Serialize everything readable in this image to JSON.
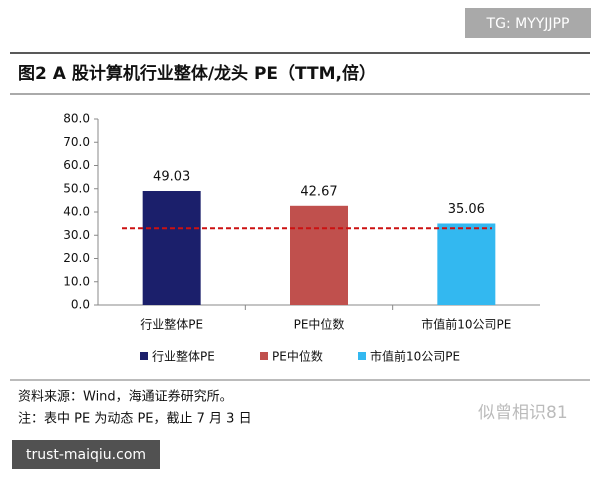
{
  "watermark": "TG: MYYJJPP",
  "chart_data": {
    "type": "bar",
    "title": "图2  A 股计算机行业整体/龙头 PE（TTM,倍）",
    "categories": [
      "行业整体PE",
      "PE中位数",
      "市值前10公司PE"
    ],
    "values": [
      49.03,
      42.67,
      35.06
    ],
    "colors": [
      "#1b1f6b",
      "#c0504d",
      "#33b8f0"
    ],
    "ylim": [
      0,
      80
    ],
    "yticks": [
      {
        "value": 0,
        "label": "0.0"
      },
      {
        "value": 10,
        "label": "10.0"
      },
      {
        "value": 20,
        "label": "20.0"
      },
      {
        "value": 30,
        "label": "30.0"
      },
      {
        "value": 40,
        "label": "40.0"
      },
      {
        "value": 50,
        "label": "50.0"
      },
      {
        "value": 60,
        "label": "60.0"
      },
      {
        "value": 70,
        "label": "70.0"
      },
      {
        "value": 80,
        "label": "80.0"
      }
    ],
    "reference_line": {
      "value": 33,
      "color": "#cc1111"
    },
    "legend": "bottom"
  },
  "source": "资料来源：Wind，海通证券研究所。",
  "note": "注：表中 PE 为动态 PE，截止 7 月 3 日",
  "watermark_right": "似曾相识81",
  "watermark_left": "trust-maiqiu.com"
}
